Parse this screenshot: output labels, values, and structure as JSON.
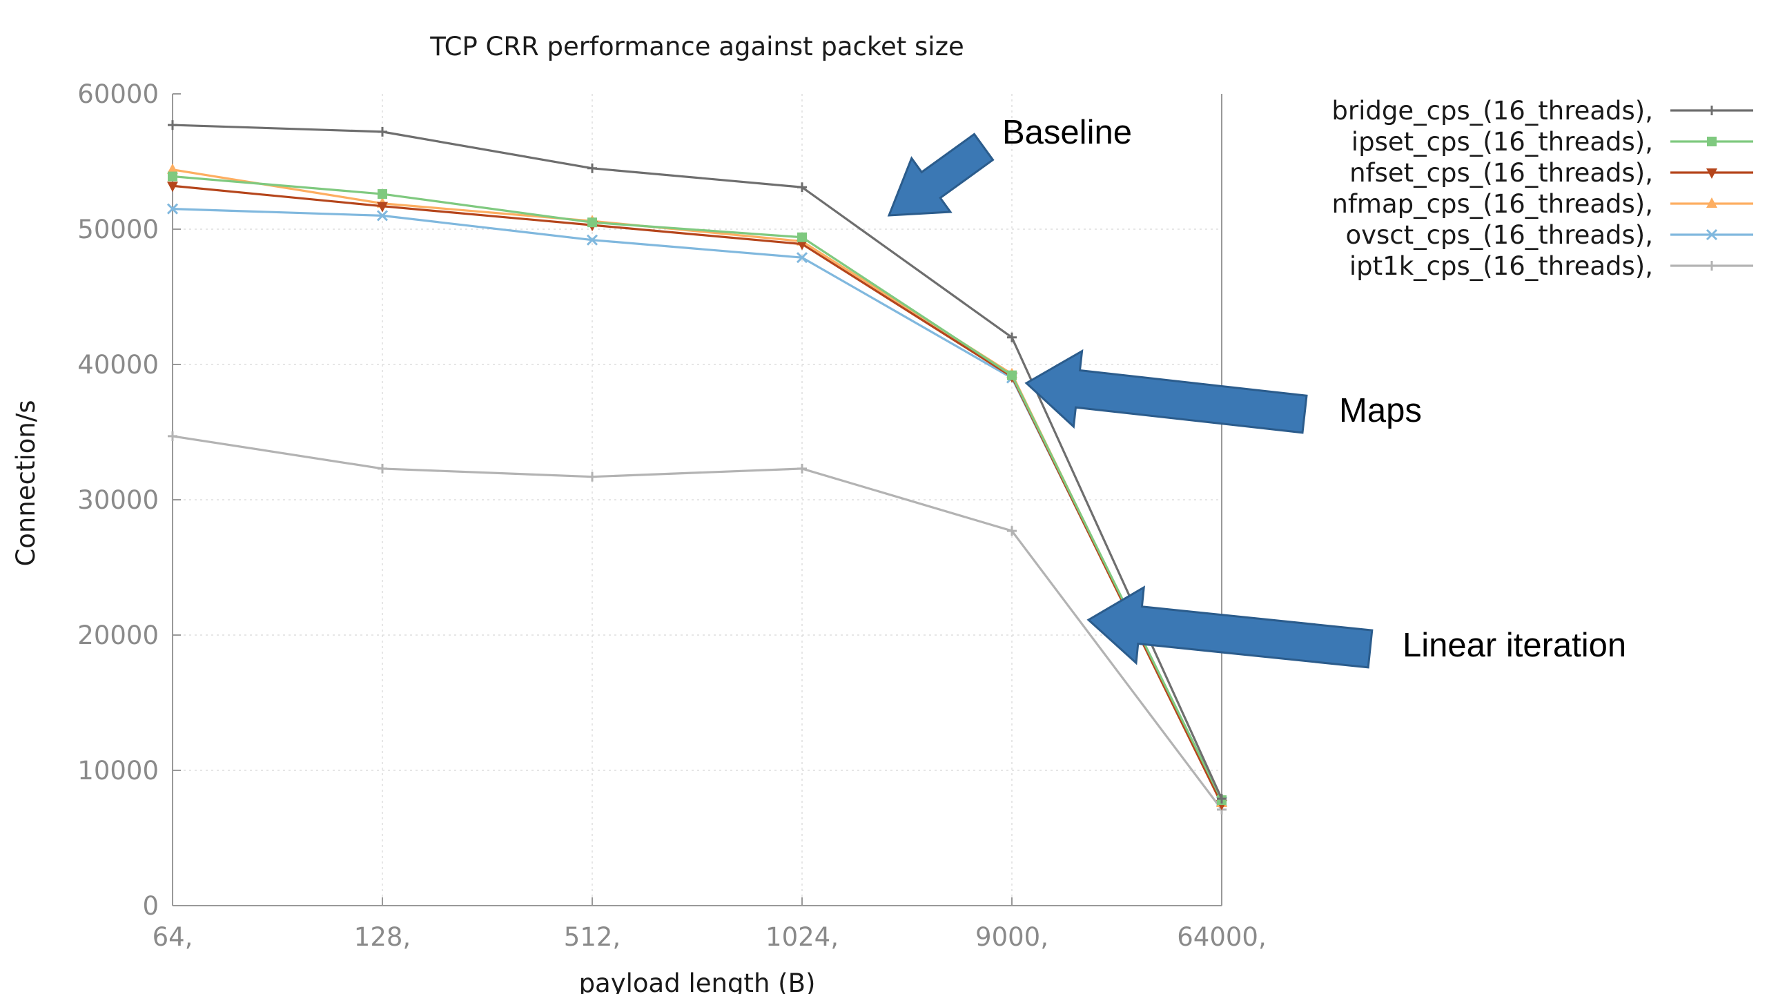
{
  "chart_data": {
    "type": "line",
    "title": "TCP CRR performance against packet size",
    "xlabel": "payload length (B)",
    "ylabel": "Connection/s",
    "categories": [
      "64,",
      "128,",
      "512,",
      "1024,",
      "9000,",
      "64000,"
    ],
    "ylim": [
      0,
      60000
    ],
    "yticks": [
      0,
      10000,
      20000,
      30000,
      40000,
      50000,
      60000
    ],
    "grid": true,
    "legend_position": "top-right",
    "series": [
      {
        "name": "bridge_cps_(16_threads),",
        "color": "#6e6e6e",
        "marker": "plus",
        "values": [
          57700,
          57200,
          54500,
          53100,
          42000,
          7900
        ]
      },
      {
        "name": "ipset_cps_(16_threads),",
        "color": "#7fc97f",
        "marker": "square",
        "values": [
          53900,
          52600,
          50500,
          49400,
          39200,
          7800
        ]
      },
      {
        "name": "nfset_cps_(16_threads),",
        "color": "#b5451b",
        "marker": "triangle-down",
        "values": [
          53200,
          51700,
          50300,
          48900,
          39100,
          7500
        ]
      },
      {
        "name": "nfmap_cps_(16_threads),",
        "color": "#fdae61",
        "marker": "triangle-up",
        "values": [
          54400,
          51900,
          50600,
          49100,
          39300,
          7600
        ]
      },
      {
        "name": "ovsct_cps_(16_threads),",
        "color": "#80b8de",
        "marker": "x",
        "values": [
          51500,
          51000,
          49200,
          47900,
          39000,
          7700
        ]
      },
      {
        "name": "ipt1k_cps_(16_threads),",
        "color": "#b3b3b3",
        "marker": "plus",
        "values": [
          34700,
          32300,
          31700,
          32300,
          27700,
          7100
        ]
      }
    ],
    "annotations": [
      {
        "text": "Baseline",
        "arrow_color": "#3b78b4"
      },
      {
        "text": "Maps",
        "arrow_color": "#3b78b4"
      },
      {
        "text": "Linear iteration",
        "arrow_color": "#3b78b4"
      }
    ]
  }
}
